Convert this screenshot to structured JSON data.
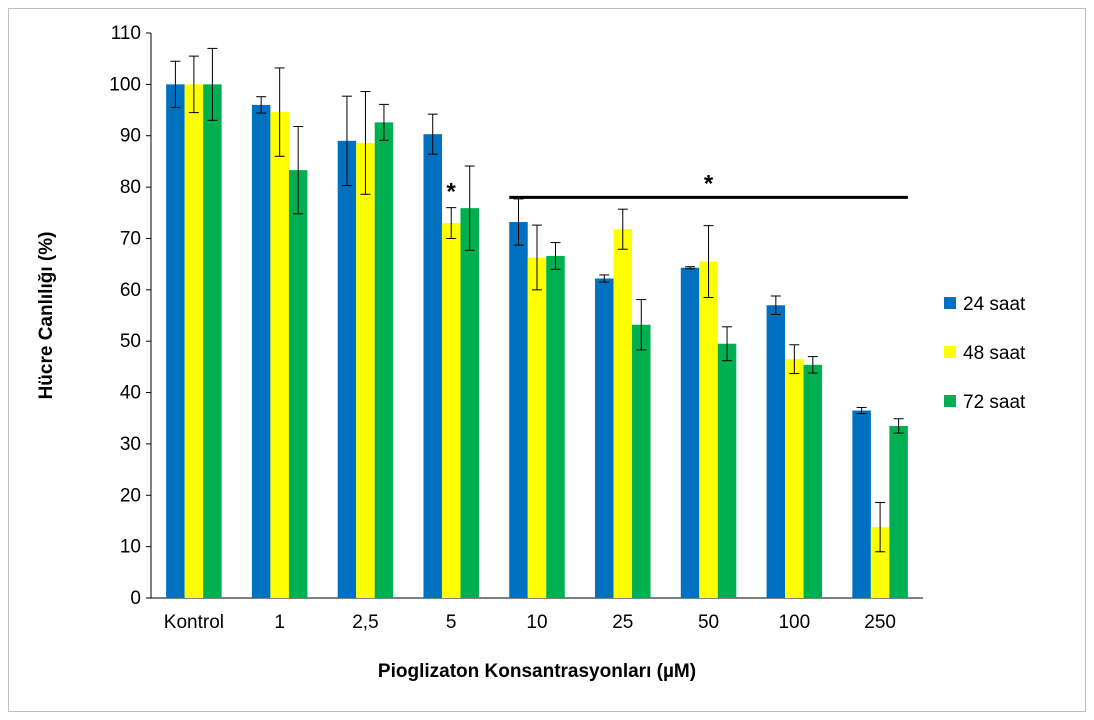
{
  "chart_data": {
    "type": "bar",
    "title": "",
    "xlabel": "Pioglizaton Konsantrasyonları (µM)",
    "ylabel": "Hücre Canlılığı (%)",
    "ylim": [
      0,
      110
    ],
    "ytick_step": 10,
    "categories": [
      "Kontrol",
      "1",
      "2,5",
      "5",
      "10",
      "25",
      "50",
      "100",
      "250"
    ],
    "series": [
      {
        "name": "24 saat",
        "color": "#0070c0",
        "values": [
          100,
          96,
          89,
          90.3,
          73.2,
          62.2,
          64.3,
          57,
          36.5
        ],
        "errors": [
          4.5,
          1.6,
          8.7,
          3.9,
          4.5,
          0.7,
          0.2,
          1.8,
          0.6
        ]
      },
      {
        "name": "48 saat",
        "color": "#ffff00",
        "values": [
          100,
          94.6,
          88.6,
          73,
          66.3,
          71.8,
          65.5,
          46.5,
          13.8
        ],
        "errors": [
          5.5,
          8.6,
          10,
          3,
          6.3,
          3.9,
          7,
          2.8,
          4.8
        ]
      },
      {
        "name": "72 saat",
        "color": "#00b050",
        "values": [
          100,
          83.3,
          92.6,
          75.9,
          66.6,
          53.2,
          49.5,
          45.4,
          33.5
        ],
        "errors": [
          7,
          8.5,
          3.5,
          8.2,
          2.6,
          4.9,
          3.3,
          1.6,
          1.4
        ]
      }
    ],
    "annotations": [
      {
        "text": "*",
        "category_index": 3,
        "series_index": 1
      },
      {
        "text": "*",
        "bracket_from_category": 4,
        "bracket_to_category": 8
      }
    ],
    "legend_position": "right",
    "grid": false
  }
}
